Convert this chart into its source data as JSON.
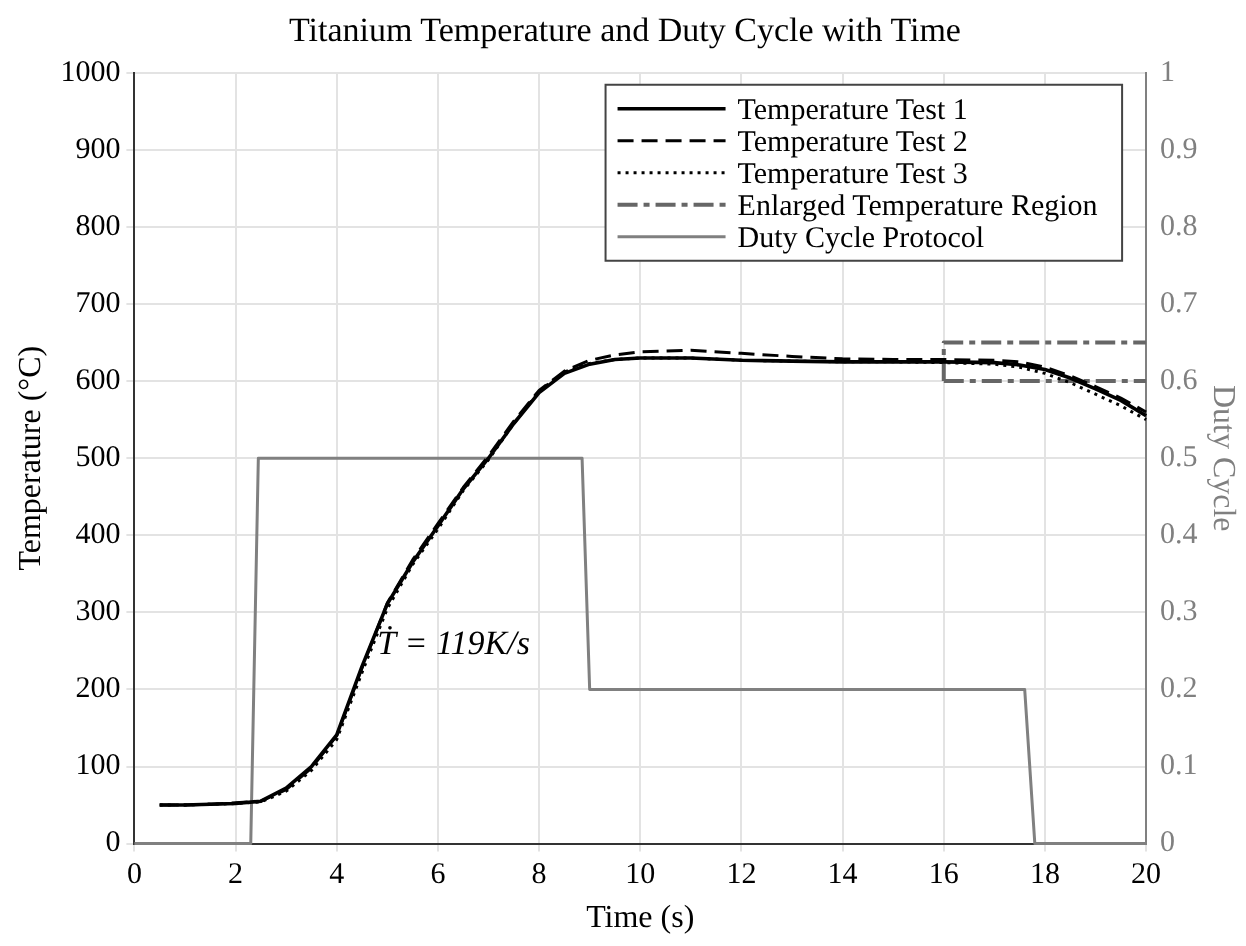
{
  "chart_data": {
    "type": "line",
    "title": "Titanium Temperature and Duty Cycle with Time",
    "xlabel": "Time (s)",
    "ylabel": "Temperature (°C)",
    "y2label": "Duty Cycle",
    "xlim": [
      0,
      20
    ],
    "xticks": [
      0,
      2,
      4,
      6,
      8,
      10,
      12,
      14,
      16,
      18,
      20
    ],
    "ylim": [
      0,
      1000
    ],
    "yticks": [
      0,
      100,
      200,
      300,
      400,
      500,
      600,
      700,
      800,
      900,
      1000
    ],
    "y2lim": [
      0,
      1
    ],
    "y2ticks": [
      0,
      0.1,
      0.2,
      0.3,
      0.4,
      0.5,
      0.6,
      0.7,
      0.8,
      0.9,
      1
    ],
    "grid": true,
    "legend": "top right",
    "marker": "none",
    "annotations": [
      {
        "text": "Ṫ = 119K/s",
        "x": 4.8,
        "y": 258
      }
    ],
    "series": [
      {
        "name": "Temperature Test 1",
        "color": "#000000",
        "line_style": "solid",
        "x": [
          0.5,
          1,
          1.5,
          2,
          2.5,
          3,
          3.5,
          4,
          4.5,
          5,
          5.5,
          6,
          6.5,
          7,
          7.5,
          8,
          8.5,
          9,
          9.5,
          10,
          11,
          12,
          13,
          14,
          15,
          16,
          17,
          17.5,
          18,
          18.5,
          19,
          19.5,
          20
        ],
        "values": [
          50,
          50,
          51,
          52,
          55,
          72,
          100,
          141,
          230,
          311,
          365,
          412,
          460,
          500,
          545,
          585,
          610,
          622,
          628,
          630,
          630,
          627,
          626,
          625,
          625,
          625,
          624,
          621,
          615,
          604,
          590,
          575,
          555
        ]
      },
      {
        "name": "Temperature Test 2",
        "color": "#000000",
        "line_style": "dashed",
        "x": [
          0.5,
          1,
          1.5,
          2,
          2.5,
          3,
          3.5,
          4,
          4.5,
          5,
          5.5,
          6,
          6.5,
          7,
          7.5,
          8,
          8.5,
          9,
          9.5,
          10,
          11,
          12,
          13,
          14,
          15,
          16,
          17,
          17.5,
          18,
          18.5,
          19,
          19.5,
          20
        ],
        "values": [
          50,
          50,
          51,
          53,
          55,
          70,
          98,
          140,
          228,
          312,
          368,
          415,
          462,
          503,
          548,
          588,
          613,
          627,
          634,
          638,
          640,
          636,
          632,
          629,
          628,
          628,
          627,
          625,
          618,
          607,
          593,
          578,
          560
        ]
      },
      {
        "name": "Temperature Test 3",
        "color": "#000000",
        "line_style": "dotted",
        "x": [
          0.5,
          1,
          1.5,
          2,
          2.5,
          3,
          3.5,
          4,
          4.5,
          5,
          5.5,
          6,
          6.5,
          7,
          7.5,
          8,
          8.5,
          9,
          9.5,
          10,
          11,
          12,
          13,
          14,
          15,
          16,
          17,
          17.5,
          18,
          18.5,
          19,
          19.5,
          20
        ],
        "values": [
          50,
          50,
          51,
          52,
          54,
          68,
          95,
          135,
          222,
          305,
          362,
          408,
          458,
          498,
          545,
          587,
          612,
          623,
          628,
          630,
          630,
          627,
          626,
          625,
          625,
          624,
          622,
          618,
          610,
          598,
          583,
          568,
          550
        ]
      },
      {
        "name": "Enlarged Temperature Region",
        "color": "#666666",
        "line_style": "dashdot",
        "x": [
          16,
          16,
          20
        ],
        "values": [
          600,
          650,
          650
        ]
      },
      {
        "color": "#666666",
        "line_style": "dashdot",
        "x": [
          16,
          20
        ],
        "values": [
          600,
          600
        ]
      },
      {
        "name": "Duty Cycle Protocol",
        "color": "#808080",
        "line_style": "solid",
        "axis": "y2",
        "x": [
          0,
          2.3,
          2.45,
          8.85,
          9,
          17.6,
          17.8,
          20
        ],
        "values": [
          0,
          0,
          0.5,
          0.5,
          0.2,
          0.2,
          0,
          0
        ]
      }
    ]
  }
}
